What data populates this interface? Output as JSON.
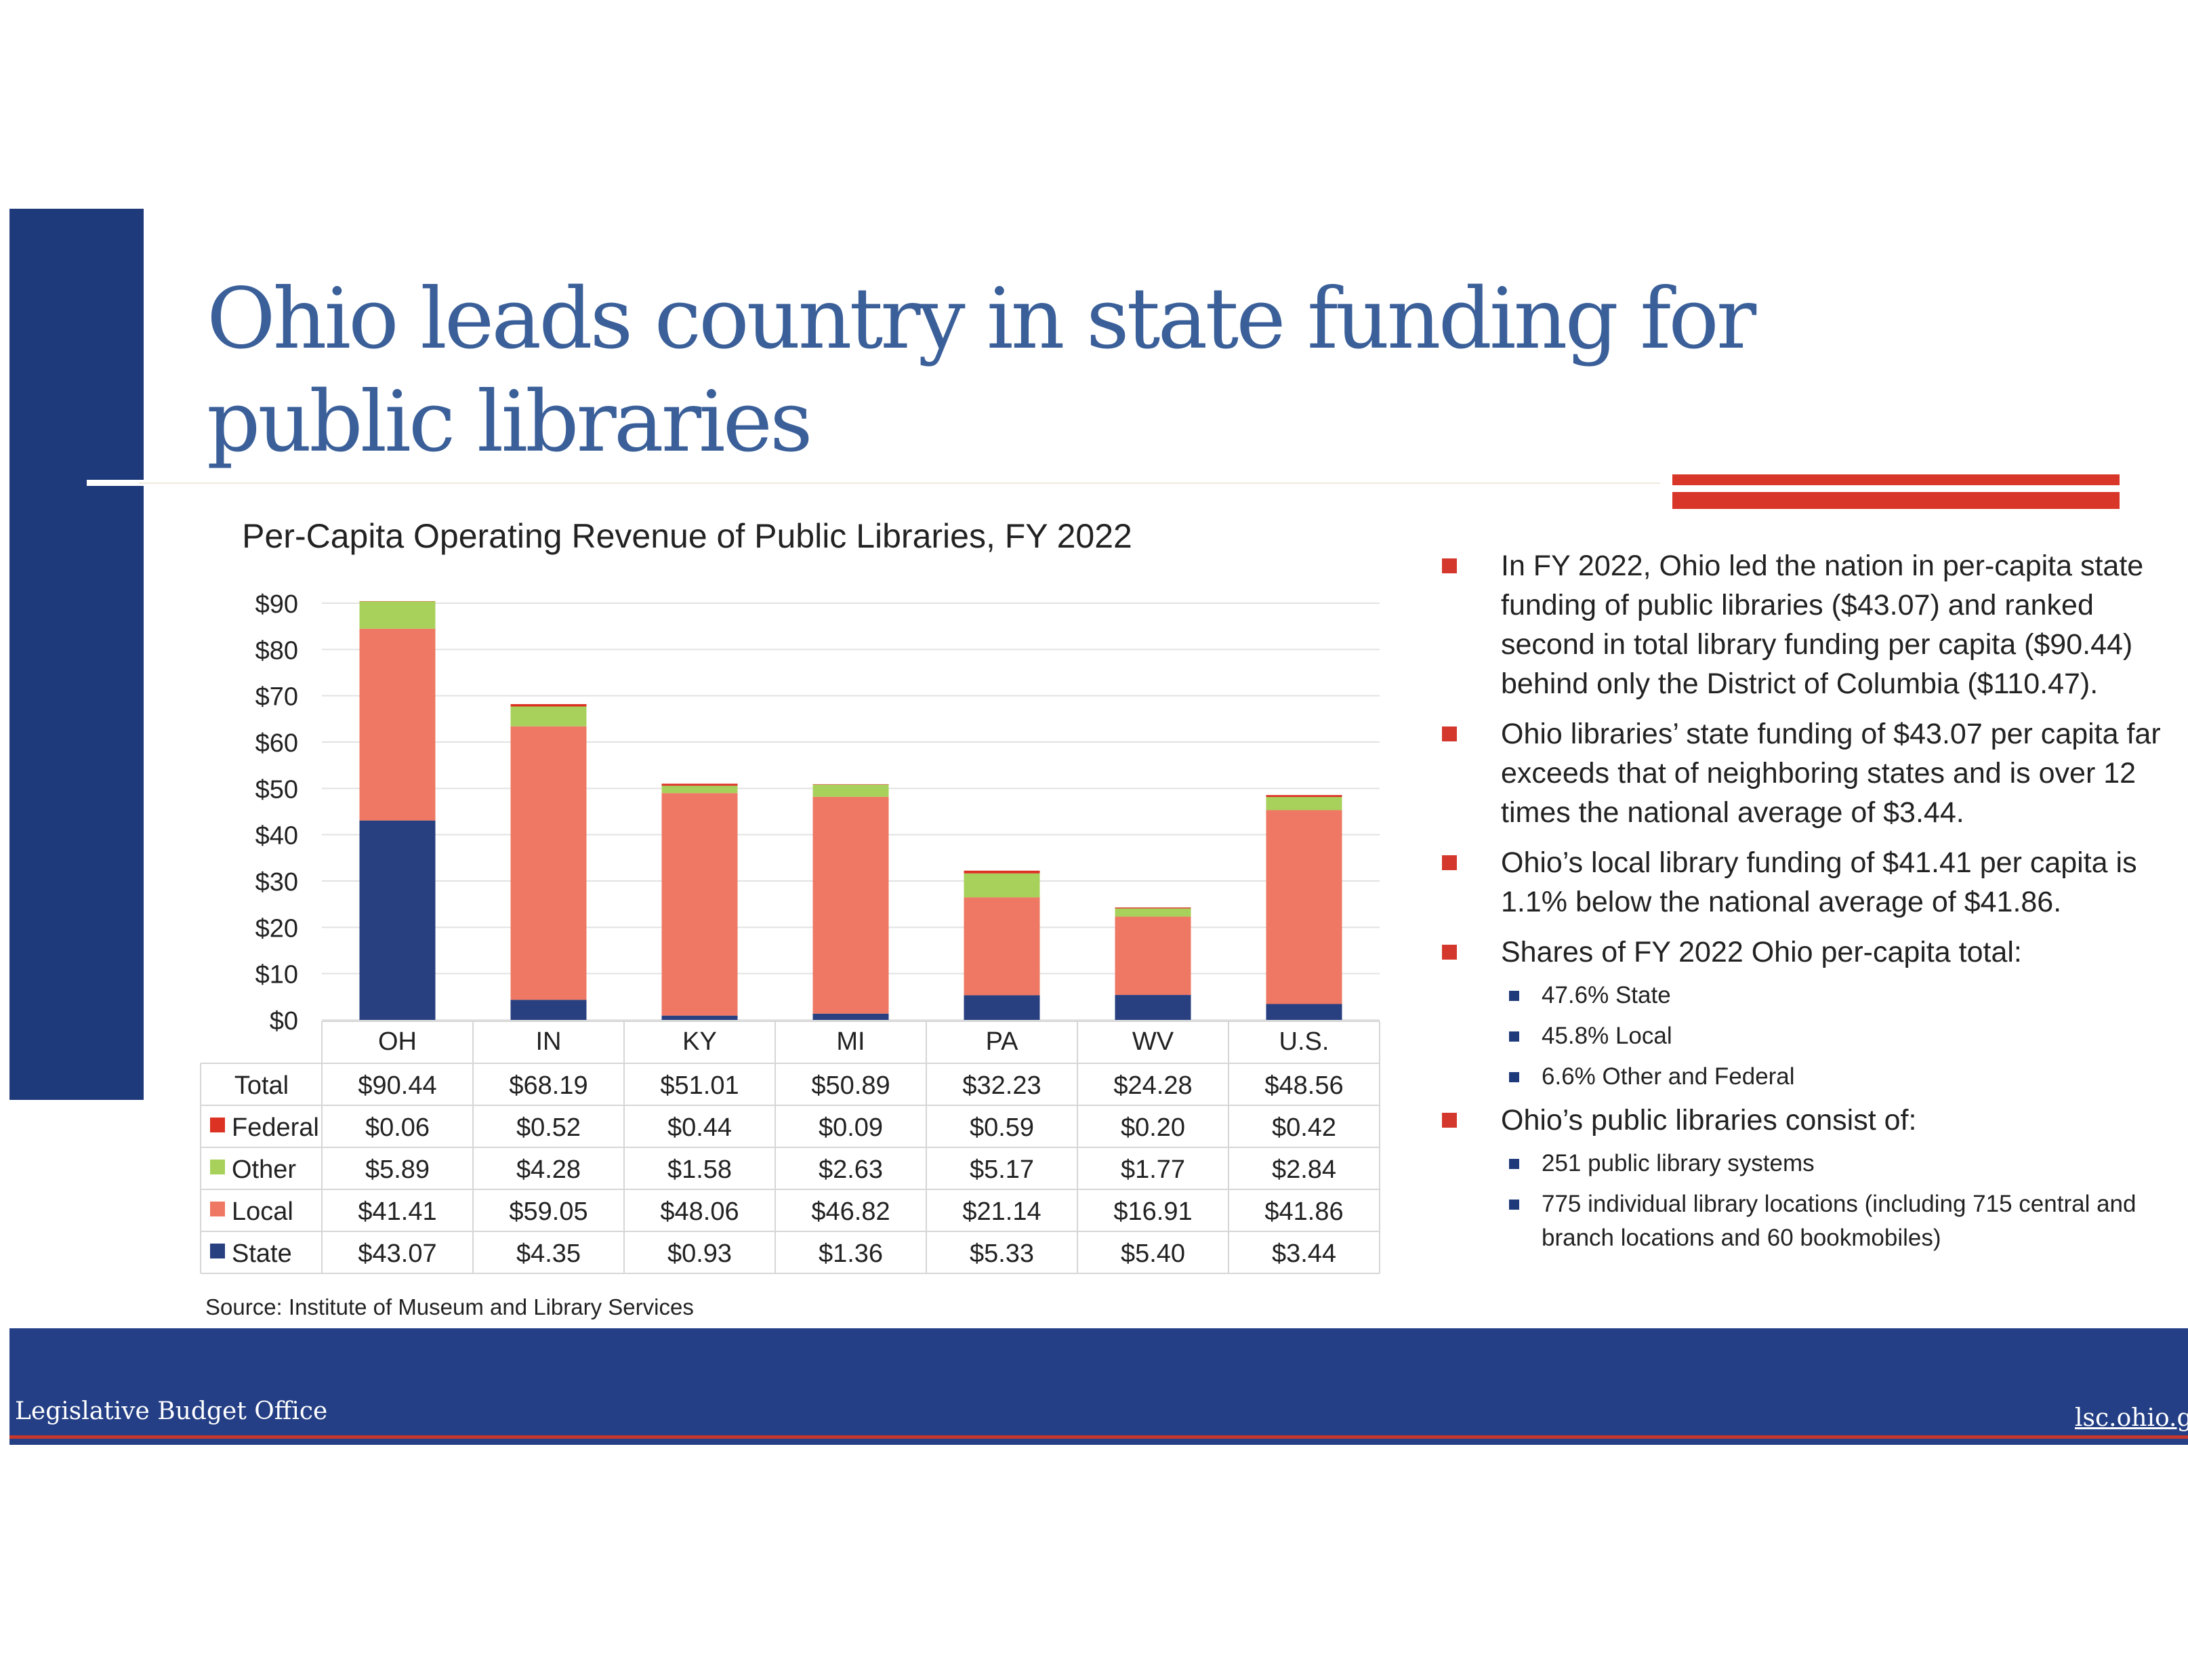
{
  "slide": {
    "title": "Ohio leads country in state funding for public libraries",
    "source": "Source: Institute of Museum and Library Services",
    "footer_left": "Legislative Budget Office",
    "footer_right": "lsc.ohio.gov"
  },
  "colors": {
    "title": "#3a5f99",
    "navy": "#1f3a7a",
    "accent_red": "#d9362a",
    "state": "#283f80",
    "local": "#ee7863",
    "other": "#a8d15b",
    "federal": "#dc3224"
  },
  "chart_data": {
    "type": "bar",
    "stacked": true,
    "title": "Per-Capita Operating Revenue of Public Libraries, FY 2022",
    "categories": [
      "OH",
      "IN",
      "KY",
      "MI",
      "PA",
      "WV",
      "U.S."
    ],
    "ylim": [
      0,
      90
    ],
    "yticks": [
      "$90",
      "$80",
      "$70",
      "$60",
      "$50",
      "$40",
      "$30",
      "$20",
      "$10",
      "$0"
    ],
    "grid": true,
    "series": [
      {
        "name": "State",
        "color": "#283f80",
        "values": [
          43.07,
          4.35,
          0.93,
          1.36,
          5.33,
          5.4,
          3.44
        ],
        "labels": [
          "$43.07",
          "$4.35",
          "$0.93",
          "$1.36",
          "$5.33",
          "$5.40",
          "$3.44"
        ]
      },
      {
        "name": "Local",
        "color": "#ee7863",
        "values": [
          41.41,
          59.05,
          48.06,
          46.82,
          21.14,
          16.91,
          41.86
        ],
        "labels": [
          "$41.41",
          "$59.05",
          "$48.06",
          "$46.82",
          "$21.14",
          "$16.91",
          "$41.86"
        ]
      },
      {
        "name": "Other",
        "color": "#a8d15b",
        "values": [
          5.89,
          4.28,
          1.58,
          2.63,
          5.17,
          1.77,
          2.84
        ],
        "labels": [
          "$5.89",
          "$4.28",
          "$1.58",
          "$2.63",
          "$5.17",
          "$1.77",
          "$2.84"
        ]
      },
      {
        "name": "Federal",
        "color": "#dc3224",
        "values": [
          0.06,
          0.52,
          0.44,
          0.09,
          0.59,
          0.2,
          0.42
        ],
        "labels": [
          "$0.06",
          "$0.52",
          "$0.44",
          "$0.09",
          "$0.59",
          "$0.20",
          "$0.42"
        ]
      }
    ],
    "total_label": "Total",
    "totals": [
      "$90.44",
      "$68.19",
      "$51.01",
      "$50.89",
      "$32.23",
      "$24.28",
      "$48.56"
    ],
    "table_row_order": [
      "Federal",
      "Other",
      "Local",
      "State"
    ]
  },
  "bullets": [
    {
      "text": "In FY 2022, Ohio led the nation in per-capita state funding of public libraries ($43.07) and ranked second in total library funding per capita ($90.44) behind only the District of Columbia ($110.47).",
      "sub": []
    },
    {
      "text": "Ohio libraries’ state funding of $43.07 per capita far exceeds that of neighboring states and is over 12 times the national average of $3.44.",
      "sub": []
    },
    {
      "text": "Ohio’s local library funding of $41.41 per capita is 1.1% below the national average of $41.86.",
      "sub": []
    },
    {
      "text": "Shares of FY 2022 Ohio per-capita total:",
      "sub": [
        "47.6% State",
        "45.8% Local",
        "6.6% Other and Federal"
      ]
    },
    {
      "text": "Ohio’s public libraries consist of:",
      "sub": [
        "251 public library systems",
        "775 individual library locations (including 715 central and branch locations and 60 bookmobiles)"
      ]
    }
  ]
}
